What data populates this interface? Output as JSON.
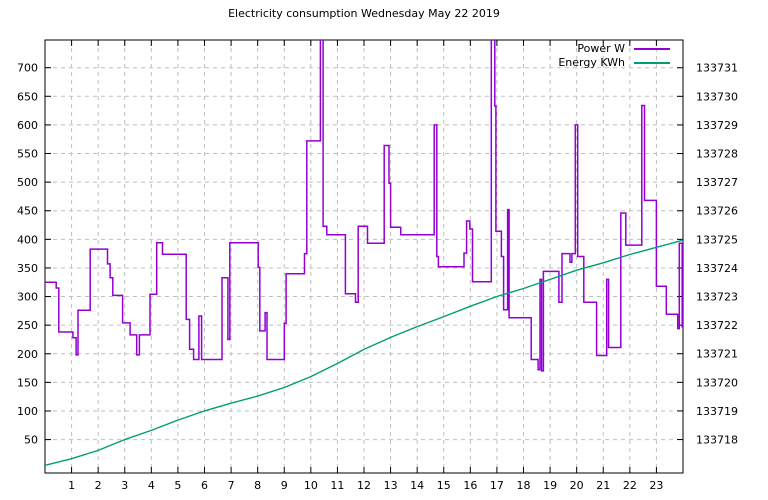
{
  "title": "Electricity consumption Wednesday May 22 2019",
  "legend": {
    "entries": [
      {
        "label": "Power W",
        "color": "#9400d3"
      },
      {
        "label": "Energy KWh",
        "color": "#009e73"
      }
    ]
  },
  "colors": {
    "power": "#9400d3",
    "energy": "#009e73",
    "grid": "#bfbfbf",
    "border": "#000000",
    "background": "#ffffff"
  },
  "chart_data": {
    "type": "line",
    "title": "Electricity consumption Wednesday May 22 2019",
    "grid": "dashed, on every x hour tick and every 50 W left-axis tick",
    "legend_position": "top-right inside plot",
    "x_axis": {
      "min": 0,
      "max": 24,
      "ticks": [
        1,
        2,
        3,
        4,
        5,
        6,
        7,
        8,
        9,
        10,
        11,
        12,
        13,
        14,
        15,
        16,
        17,
        18,
        19,
        20,
        21,
        22,
        23
      ]
    },
    "y_left": {
      "name": "Power W",
      "min": -8.4,
      "max": 748.4,
      "ticks": [
        700,
        650,
        600,
        550,
        500,
        450,
        400,
        350,
        300,
        250,
        200,
        150,
        100,
        50
      ]
    },
    "y_right": {
      "name": "Energy KWh",
      "min": 133716.83,
      "max": 133731.97,
      "ticks": [
        133731,
        133730,
        133729,
        133728,
        133727,
        133726,
        133725,
        133724,
        133723,
        133722,
        133721,
        133720,
        133719,
        133718
      ]
    },
    "series": [
      {
        "name": "Power W",
        "color": "#9400d3",
        "axis": "left",
        "mode": "step-after",
        "note": "values above 748 are clipped at plot top (spikes at ~10.4h and ~16.8h)",
        "points": [
          [
            0.0,
            325
          ],
          [
            0.42,
            315
          ],
          [
            0.52,
            238
          ],
          [
            1.05,
            228
          ],
          [
            1.17,
            198
          ],
          [
            1.24,
            276
          ],
          [
            1.7,
            383
          ],
          [
            2.35,
            357
          ],
          [
            2.45,
            333
          ],
          [
            2.55,
            302
          ],
          [
            2.92,
            254
          ],
          [
            3.2,
            233
          ],
          [
            3.45,
            198
          ],
          [
            3.55,
            233
          ],
          [
            3.95,
            304
          ],
          [
            4.2,
            394
          ],
          [
            4.42,
            374
          ],
          [
            5.31,
            260
          ],
          [
            5.44,
            208
          ],
          [
            5.59,
            190
          ],
          [
            5.79,
            266
          ],
          [
            5.89,
            190
          ],
          [
            6.66,
            333
          ],
          [
            6.88,
            225
          ],
          [
            6.95,
            394
          ],
          [
            8.02,
            351
          ],
          [
            8.08,
            240
          ],
          [
            8.28,
            272
          ],
          [
            8.35,
            190
          ],
          [
            9.0,
            253
          ],
          [
            9.07,
            340
          ],
          [
            9.76,
            375
          ],
          [
            9.85,
            572
          ],
          [
            10.36,
            900
          ],
          [
            10.46,
            423
          ],
          [
            10.6,
            408
          ],
          [
            11.3,
            305
          ],
          [
            11.68,
            290
          ],
          [
            11.78,
            423
          ],
          [
            12.13,
            393
          ],
          [
            12.76,
            564
          ],
          [
            12.94,
            498
          ],
          [
            13.0,
            421
          ],
          [
            13.38,
            408
          ],
          [
            14.64,
            600
          ],
          [
            14.74,
            370
          ],
          [
            14.8,
            352
          ],
          [
            15.76,
            376
          ],
          [
            15.86,
            432
          ],
          [
            15.98,
            418
          ],
          [
            16.08,
            326
          ],
          [
            16.79,
            900
          ],
          [
            16.92,
            633
          ],
          [
            16.96,
            414
          ],
          [
            17.17,
            370
          ],
          [
            17.25,
            277
          ],
          [
            17.4,
            452
          ],
          [
            17.46,
            263
          ],
          [
            18.29,
            190
          ],
          [
            18.55,
            172
          ],
          [
            18.62,
            330
          ],
          [
            18.68,
            170
          ],
          [
            18.75,
            344
          ],
          [
            19.33,
            290
          ],
          [
            19.45,
            375
          ],
          [
            19.75,
            360
          ],
          [
            19.82,
            375
          ],
          [
            19.95,
            600
          ],
          [
            20.04,
            370
          ],
          [
            20.27,
            290
          ],
          [
            20.75,
            197
          ],
          [
            21.13,
            330
          ],
          [
            21.2,
            211
          ],
          [
            21.66,
            446
          ],
          [
            21.85,
            390
          ],
          [
            22.45,
            634
          ],
          [
            22.55,
            468
          ],
          [
            23.0,
            318
          ],
          [
            23.37,
            269
          ],
          [
            23.8,
            244
          ],
          [
            23.86,
            393
          ],
          [
            23.97,
            247
          ]
        ]
      },
      {
        "name": "Energy KWh",
        "color": "#009e73",
        "axis": "right",
        "mode": "line",
        "points": [
          [
            0,
            133717.1
          ],
          [
            1,
            133717.33
          ],
          [
            2,
            133717.62
          ],
          [
            3,
            133718.0
          ],
          [
            4,
            133718.32
          ],
          [
            5,
            133718.68
          ],
          [
            6,
            133719.0
          ],
          [
            7,
            133719.27
          ],
          [
            8,
            133719.52
          ],
          [
            9,
            133719.82
          ],
          [
            10,
            133720.2
          ],
          [
            11,
            133720.66
          ],
          [
            12,
            133721.15
          ],
          [
            13,
            133721.57
          ],
          [
            14,
            133721.95
          ],
          [
            15,
            133722.3
          ],
          [
            16,
            133722.66
          ],
          [
            17,
            133723.0
          ],
          [
            18,
            133723.28
          ],
          [
            19,
            133723.6
          ],
          [
            20,
            133723.92
          ],
          [
            21,
            133724.18
          ],
          [
            22,
            133724.47
          ],
          [
            23,
            133724.72
          ],
          [
            24,
            133724.97
          ]
        ]
      }
    ]
  }
}
